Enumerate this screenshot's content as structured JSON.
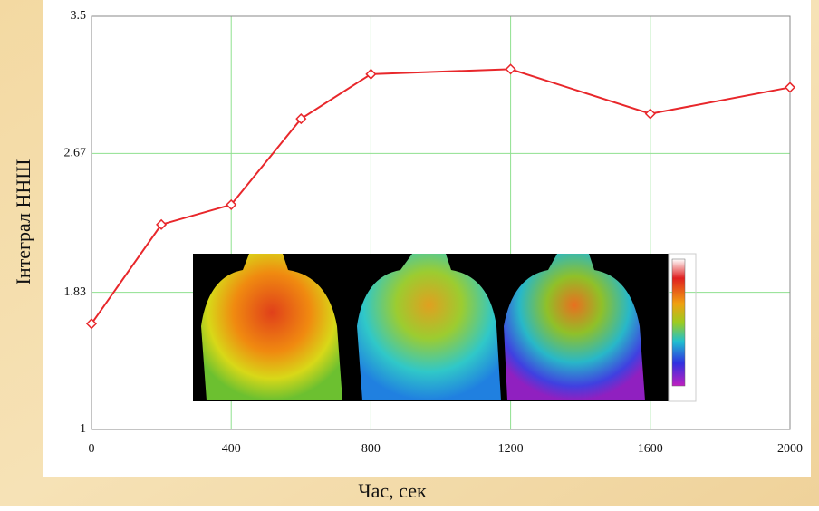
{
  "chart_data": {
    "type": "line",
    "x_label": "Час, сек",
    "y_label": "Інтеграл ННШ",
    "x": [
      0,
      200,
      400,
      600,
      800,
      1200,
      1600,
      2000
    ],
    "values": [
      1.64,
      2.24,
      2.36,
      2.88,
      3.15,
      3.18,
      2.91,
      3.07
    ],
    "color": "#e8272b",
    "marker": "diamond",
    "xlim": [
      0,
      2000
    ],
    "xticks": [
      0,
      400,
      800,
      1200,
      1600,
      2000
    ],
    "ylim": [
      1,
      3.5
    ],
    "yticks": [
      1,
      1.83,
      2.67,
      3.5
    ],
    "grid": true,
    "grid_color": "#8fe08f"
  }
}
